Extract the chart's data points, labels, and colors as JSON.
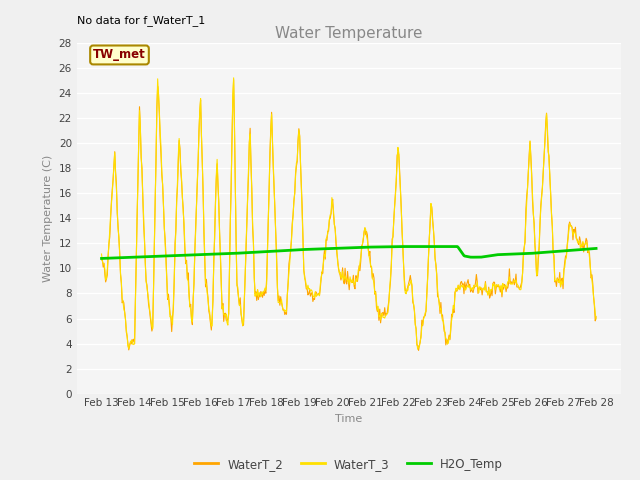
{
  "title": "Water Temperature",
  "xlabel": "Time",
  "ylabel": "Water Temperature (C)",
  "annotation_text": "No data for f_WaterT_1",
  "legend_box_label": "TW_met",
  "ylim": [
    0,
    28
  ],
  "yticks": [
    0,
    2,
    4,
    6,
    8,
    10,
    12,
    14,
    16,
    18,
    20,
    22,
    24,
    26,
    28
  ],
  "xtick_labels": [
    "Feb 13",
    "Feb 14",
    "Feb 15",
    "Feb 16",
    "Feb 17",
    "Feb 18",
    "Feb 19",
    "Feb 20",
    "Feb 21",
    "Feb 22",
    "Feb 23",
    "Feb 24",
    "Feb 25",
    "Feb 26",
    "Feb 27",
    "Feb 28"
  ],
  "color_waterT2": "#FFA500",
  "color_waterT3": "#FFE000",
  "color_h2o": "#00CC00",
  "bg_color": "#F0F0F0",
  "plot_bg_color": "#F5F5F5",
  "legend_box_facecolor": "#FFFFCC",
  "legend_box_edge_color": "#AA8800",
  "legend_box_text_color": "#880000",
  "grid_color": "#FFFFFF",
  "title_color": "#888888",
  "label_color": "#888888",
  "title_fontsize": 11,
  "axis_label_fontsize": 8,
  "tick_fontsize": 7.5
}
